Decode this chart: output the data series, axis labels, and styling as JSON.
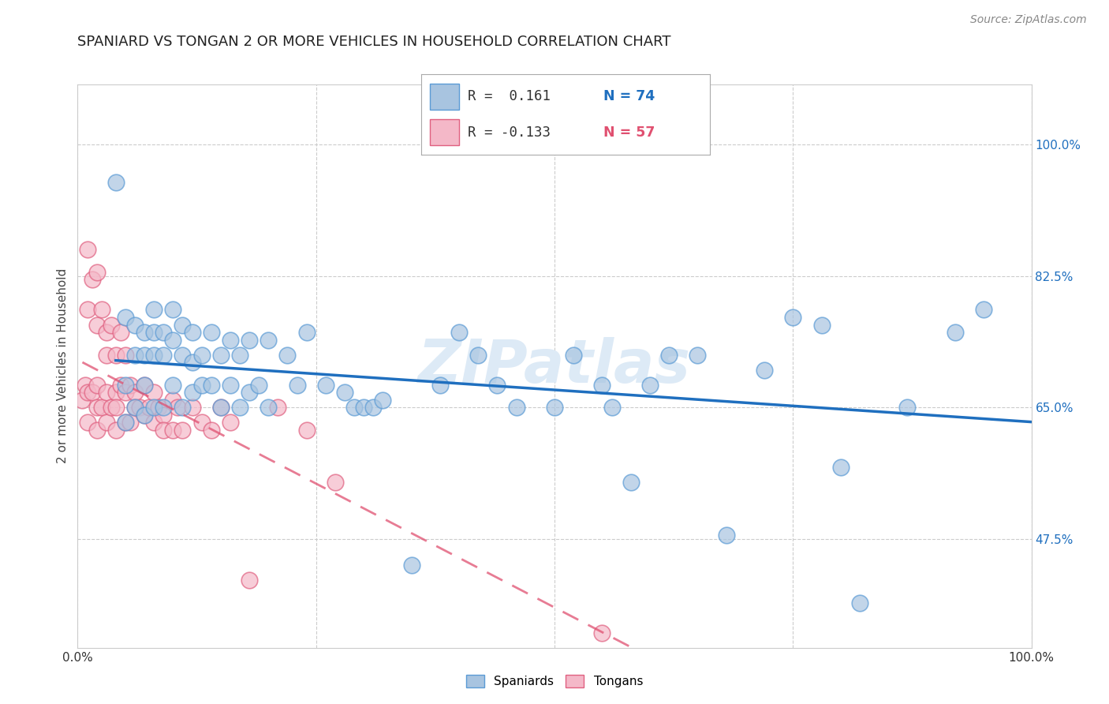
{
  "title": "SPANIARD VS TONGAN 2 OR MORE VEHICLES IN HOUSEHOLD CORRELATION CHART",
  "source": "Source: ZipAtlas.com",
  "ylabel": "2 or more Vehicles in Household",
  "xlim": [
    0.0,
    1.0
  ],
  "ylim": [
    0.33,
    1.08
  ],
  "x_ticks": [
    0.0,
    0.25,
    0.5,
    0.75,
    1.0
  ],
  "x_tick_labels": [
    "0.0%",
    "",
    "",
    "",
    "100.0%"
  ],
  "y_tick_labels_right": [
    "100.0%",
    "82.5%",
    "65.0%",
    "47.5%"
  ],
  "y_ticks_right": [
    1.0,
    0.825,
    0.65,
    0.475
  ],
  "spaniard_color": "#a8c4e0",
  "spaniard_edge_color": "#5b9bd5",
  "tongan_color": "#f4b8c8",
  "tongan_edge_color": "#e06080",
  "trend_spaniard_color": "#1f6fbf",
  "trend_tongan_color": "#e05070",
  "legend_r_spaniard": "R =  0.161",
  "legend_n_spaniard": "N = 74",
  "legend_r_tongan": "R = -0.133",
  "legend_n_tongan": "N = 57",
  "spaniard_x": [
    0.04,
    0.05,
    0.05,
    0.05,
    0.06,
    0.06,
    0.06,
    0.07,
    0.07,
    0.07,
    0.07,
    0.08,
    0.08,
    0.08,
    0.08,
    0.09,
    0.09,
    0.09,
    0.1,
    0.1,
    0.1,
    0.11,
    0.11,
    0.11,
    0.12,
    0.12,
    0.12,
    0.13,
    0.13,
    0.14,
    0.14,
    0.15,
    0.15,
    0.16,
    0.16,
    0.17,
    0.17,
    0.18,
    0.18,
    0.19,
    0.2,
    0.2,
    0.22,
    0.23,
    0.24,
    0.26,
    0.28,
    0.29,
    0.3,
    0.31,
    0.32,
    0.35,
    0.38,
    0.4,
    0.42,
    0.44,
    0.46,
    0.5,
    0.52,
    0.55,
    0.56,
    0.58,
    0.6,
    0.62,
    0.65,
    0.68,
    0.72,
    0.75,
    0.78,
    0.8,
    0.82,
    0.87,
    0.92,
    0.95
  ],
  "spaniard_y": [
    0.95,
    0.77,
    0.68,
    0.63,
    0.76,
    0.72,
    0.65,
    0.75,
    0.72,
    0.68,
    0.64,
    0.78,
    0.75,
    0.72,
    0.65,
    0.75,
    0.72,
    0.65,
    0.78,
    0.74,
    0.68,
    0.76,
    0.72,
    0.65,
    0.75,
    0.71,
    0.67,
    0.72,
    0.68,
    0.75,
    0.68,
    0.72,
    0.65,
    0.74,
    0.68,
    0.72,
    0.65,
    0.74,
    0.67,
    0.68,
    0.74,
    0.65,
    0.72,
    0.68,
    0.75,
    0.68,
    0.67,
    0.65,
    0.65,
    0.65,
    0.66,
    0.44,
    0.68,
    0.75,
    0.72,
    0.68,
    0.65,
    0.65,
    0.72,
    0.68,
    0.65,
    0.55,
    0.68,
    0.72,
    0.72,
    0.48,
    0.7,
    0.77,
    0.76,
    0.57,
    0.39,
    0.65,
    0.75,
    0.78
  ],
  "tongan_x": [
    0.005,
    0.008,
    0.01,
    0.01,
    0.01,
    0.01,
    0.015,
    0.015,
    0.02,
    0.02,
    0.02,
    0.02,
    0.02,
    0.025,
    0.025,
    0.03,
    0.03,
    0.03,
    0.03,
    0.035,
    0.035,
    0.04,
    0.04,
    0.04,
    0.04,
    0.045,
    0.045,
    0.05,
    0.05,
    0.05,
    0.055,
    0.055,
    0.06,
    0.06,
    0.065,
    0.07,
    0.07,
    0.075,
    0.08,
    0.08,
    0.085,
    0.09,
    0.09,
    0.1,
    0.1,
    0.105,
    0.11,
    0.12,
    0.13,
    0.14,
    0.15,
    0.16,
    0.18,
    0.21,
    0.24,
    0.27,
    0.55
  ],
  "tongan_y": [
    0.66,
    0.68,
    0.86,
    0.78,
    0.67,
    0.63,
    0.82,
    0.67,
    0.83,
    0.76,
    0.68,
    0.65,
    0.62,
    0.78,
    0.65,
    0.75,
    0.72,
    0.67,
    0.63,
    0.76,
    0.65,
    0.72,
    0.67,
    0.65,
    0.62,
    0.75,
    0.68,
    0.72,
    0.67,
    0.63,
    0.68,
    0.63,
    0.67,
    0.65,
    0.65,
    0.68,
    0.64,
    0.65,
    0.67,
    0.63,
    0.65,
    0.64,
    0.62,
    0.66,
    0.62,
    0.65,
    0.62,
    0.65,
    0.63,
    0.62,
    0.65,
    0.63,
    0.42,
    0.65,
    0.62,
    0.55,
    0.35
  ],
  "watermark": "ZIPatlas",
  "grid_color": "#cccccc",
  "background_color": "#ffffff"
}
